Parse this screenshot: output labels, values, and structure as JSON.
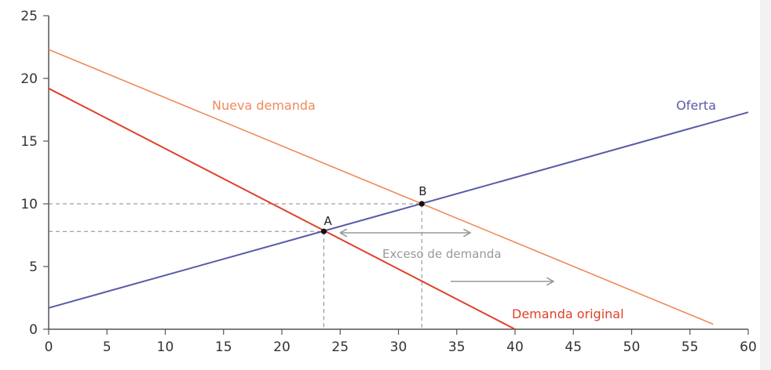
{
  "chart_data": {
    "type": "line",
    "title": "",
    "xlabel": "",
    "ylabel": "",
    "xlim": [
      0,
      60
    ],
    "ylim": [
      0,
      25
    ],
    "xticks": [
      0,
      5,
      10,
      15,
      20,
      25,
      30,
      35,
      40,
      45,
      50,
      55,
      60
    ],
    "yticks": [
      0,
      5,
      10,
      15,
      20,
      25
    ],
    "x_tick_labels": [
      "0",
      "5",
      "10",
      "15",
      "20",
      "25",
      "30",
      "35",
      "40",
      "45",
      "50",
      "55",
      "60"
    ],
    "y_tick_labels": [
      "0",
      "5",
      "10",
      "15",
      "20",
      "25"
    ],
    "grid": false,
    "series": [
      {
        "name": "Oferta",
        "color": "#5a5aa8",
        "x": [
          0,
          60
        ],
        "y": [
          1.7,
          17.3
        ]
      },
      {
        "name": "Demanda original",
        "color": "#e0402a",
        "x": [
          0,
          40
        ],
        "y": [
          19.2,
          0
        ]
      },
      {
        "name": "Nueva demanda",
        "color": "#ef8a5c",
        "x": [
          0,
          57
        ],
        "y": [
          22.3,
          0.4
        ]
      }
    ],
    "points": [
      {
        "label": "A",
        "x": 23.6,
        "y": 7.8
      },
      {
        "label": "B",
        "x": 32,
        "y": 10
      }
    ],
    "annotations": [
      {
        "text": "Exceso de demanda",
        "color": "#999999"
      }
    ]
  }
}
